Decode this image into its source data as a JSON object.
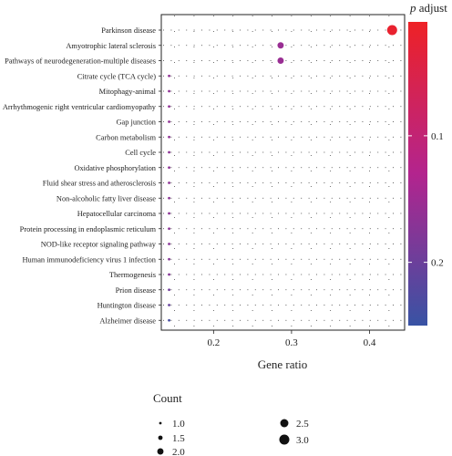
{
  "chart_data": {
    "type": "scatter",
    "title": "",
    "xlabel": "Gene ratio",
    "ylabel": "",
    "xlim": [
      0.133,
      0.445
    ],
    "xticks": [
      0.2,
      0.3,
      0.4
    ],
    "xtick_labels": [
      "0.2",
      "0.3",
      "0.4"
    ],
    "grid": true,
    "categories": [
      "Parkinson disease",
      "Amyotrophic lateral sclerosis",
      "Pathways of neurodegeneration-multiple diseases",
      "Citrate cycle (TCA cycle)",
      "Mitophagy-animal",
      "Arrhythmogenic right ventricular cardiomyopathy",
      "Gap junction",
      "Carbon metabolism",
      "Cell cycle",
      "Oxidative phosphorylation",
      "Fluid shear stress and atherosclerosis",
      "Non-alcoholic fatty liver disease",
      "Hepatocellular carcinoma",
      "Protein processing in endoplasmic reticulum",
      "NOD-like receptor signaling pathway",
      "Human immunodeficiency virus 1 infection",
      "Thermogenesis",
      "Prion disease",
      "Huntington disease",
      "Alzheimer disease"
    ],
    "points": [
      {
        "category": "Parkinson disease",
        "gene_ratio": 0.429,
        "count": 3,
        "p_adjust": 0.02
      },
      {
        "category": "Amyotrophic lateral sclerosis",
        "gene_ratio": 0.286,
        "count": 2,
        "p_adjust": 0.155
      },
      {
        "category": "Pathways of neurodegeneration-multiple diseases",
        "gene_ratio": 0.286,
        "count": 2,
        "p_adjust": 0.155
      },
      {
        "category": "Citrate cycle (TCA cycle)",
        "gene_ratio": 0.143,
        "count": 1,
        "p_adjust": 0.165
      },
      {
        "category": "Mitophagy-animal",
        "gene_ratio": 0.143,
        "count": 1,
        "p_adjust": 0.165
      },
      {
        "category": "Arrhythmogenic right ventricular cardiomyopathy",
        "gene_ratio": 0.143,
        "count": 1,
        "p_adjust": 0.165
      },
      {
        "category": "Gap junction",
        "gene_ratio": 0.143,
        "count": 1,
        "p_adjust": 0.165
      },
      {
        "category": "Carbon metabolism",
        "gene_ratio": 0.143,
        "count": 1,
        "p_adjust": 0.165
      },
      {
        "category": "Cell cycle",
        "gene_ratio": 0.143,
        "count": 1,
        "p_adjust": 0.168
      },
      {
        "category": "Oxidative phosphorylation",
        "gene_ratio": 0.143,
        "count": 1,
        "p_adjust": 0.168
      },
      {
        "category": "Fluid shear stress and atherosclerosis",
        "gene_ratio": 0.143,
        "count": 1,
        "p_adjust": 0.168
      },
      {
        "category": "Non-alcoholic fatty liver disease",
        "gene_ratio": 0.143,
        "count": 1,
        "p_adjust": 0.17
      },
      {
        "category": "Hepatocellular carcinoma",
        "gene_ratio": 0.143,
        "count": 1,
        "p_adjust": 0.17
      },
      {
        "category": "Protein processing in endoplasmic reticulum",
        "gene_ratio": 0.143,
        "count": 1,
        "p_adjust": 0.17
      },
      {
        "category": "NOD-like receptor signaling pathway",
        "gene_ratio": 0.143,
        "count": 1,
        "p_adjust": 0.172
      },
      {
        "category": "Human immunodeficiency virus 1 infection",
        "gene_ratio": 0.143,
        "count": 1,
        "p_adjust": 0.175
      },
      {
        "category": "Thermogenesis",
        "gene_ratio": 0.143,
        "count": 1,
        "p_adjust": 0.175
      },
      {
        "category": "Prion disease",
        "gene_ratio": 0.143,
        "count": 1,
        "p_adjust": 0.195
      },
      {
        "category": "Huntington disease",
        "gene_ratio": 0.143,
        "count": 1,
        "p_adjust": 0.205
      },
      {
        "category": "Alzheimer disease",
        "gene_ratio": 0.143,
        "count": 1,
        "p_adjust": 0.235
      }
    ],
    "size_legend": {
      "title": "Count",
      "entries": [
        {
          "label": "1.0",
          "value": 1.0
        },
        {
          "label": "1.5",
          "value": 1.5
        },
        {
          "label": "2.0",
          "value": 2.0
        },
        {
          "label": "2.5",
          "value": 2.5
        },
        {
          "label": "3.0",
          "value": 3.0
        }
      ]
    },
    "color_legend": {
      "title_italic": "p",
      "title_rest": " adjust",
      "range": [
        0.01,
        0.25
      ],
      "ticks": [
        0.1,
        0.2
      ],
      "tick_labels": [
        "0.1",
        "0.2"
      ],
      "colors": {
        "low": "#ee2226",
        "mid": "#b3248e",
        "high": "#3853a4"
      }
    }
  }
}
